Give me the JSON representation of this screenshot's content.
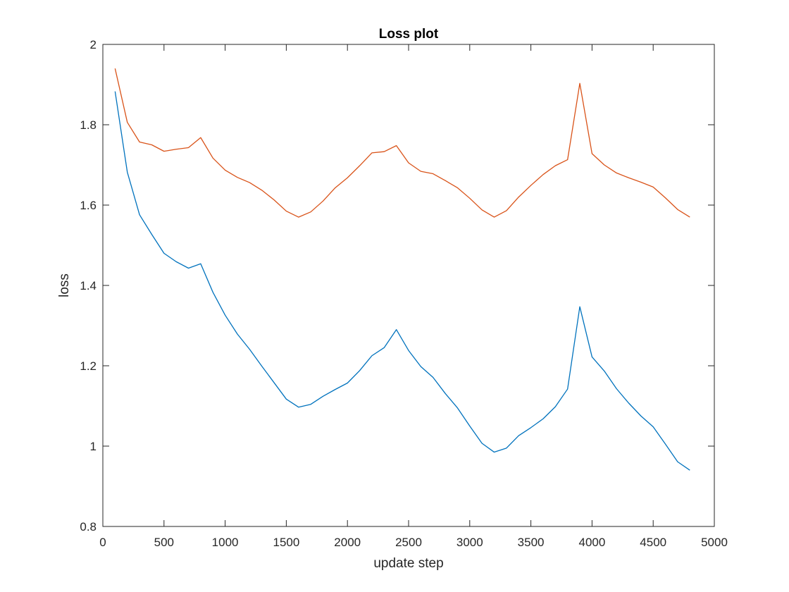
{
  "chart_data": {
    "type": "line",
    "title": "Loss plot",
    "xlabel": "update step",
    "ylabel": "loss",
    "xlim": [
      0,
      5000
    ],
    "ylim": [
      0.8,
      2
    ],
    "xticks": [
      0,
      500,
      1000,
      1500,
      2000,
      2500,
      3000,
      3500,
      4000,
      4500,
      5000
    ],
    "xtick_labels": [
      "0",
      "500",
      "1000",
      "1500",
      "2000",
      "2500",
      "3000",
      "3500",
      "4000",
      "4500",
      "5000"
    ],
    "yticks": [
      0.8,
      1.0,
      1.2,
      1.4,
      1.6,
      1.8,
      2.0
    ],
    "ytick_labels": [
      "0.8",
      "1",
      "1.2",
      "1.4",
      "1.6",
      "1.8",
      "2"
    ],
    "grid": false,
    "legend": false,
    "x": [
      100,
      200,
      300,
      400,
      500,
      600,
      700,
      800,
      900,
      1000,
      1100,
      1200,
      1300,
      1400,
      1500,
      1600,
      1700,
      1800,
      1900,
      2000,
      2100,
      2200,
      2300,
      2400,
      2500,
      2600,
      2700,
      2800,
      2900,
      3000,
      3100,
      3200,
      3300,
      3400,
      3500,
      3600,
      3700,
      3800,
      3900,
      4000,
      4100,
      4200,
      4300,
      4400,
      4500,
      4600,
      4700,
      4800
    ],
    "series": [
      {
        "color": "#0072BD",
        "values": [
          1.883,
          1.682,
          1.576,
          1.527,
          1.48,
          1.459,
          1.443,
          1.454,
          1.383,
          1.326,
          1.279,
          1.241,
          1.199,
          1.158,
          1.117,
          1.097,
          1.104,
          1.124,
          1.141,
          1.157,
          1.188,
          1.225,
          1.245,
          1.29,
          1.238,
          1.198,
          1.171,
          1.131,
          1.095,
          1.05,
          1.007,
          0.985,
          0.995,
          1.026,
          1.046,
          1.068,
          1.098,
          1.142,
          1.347,
          1.222,
          1.187,
          1.143,
          1.107,
          1.075,
          1.048,
          1.005,
          0.961,
          0.94
        ]
      },
      {
        "color": "#D95319",
        "values": [
          1.94,
          1.806,
          1.757,
          1.75,
          1.734,
          1.739,
          1.743,
          1.768,
          1.717,
          1.687,
          1.669,
          1.656,
          1.637,
          1.613,
          1.585,
          1.57,
          1.583,
          1.61,
          1.643,
          1.668,
          1.698,
          1.73,
          1.733,
          1.748,
          1.705,
          1.684,
          1.678,
          1.661,
          1.643,
          1.617,
          1.588,
          1.57,
          1.586,
          1.62,
          1.649,
          1.676,
          1.698,
          1.713,
          1.903,
          1.728,
          1.7,
          1.68,
          1.668,
          1.657,
          1.645,
          1.618,
          1.589,
          1.57
        ]
      }
    ]
  }
}
